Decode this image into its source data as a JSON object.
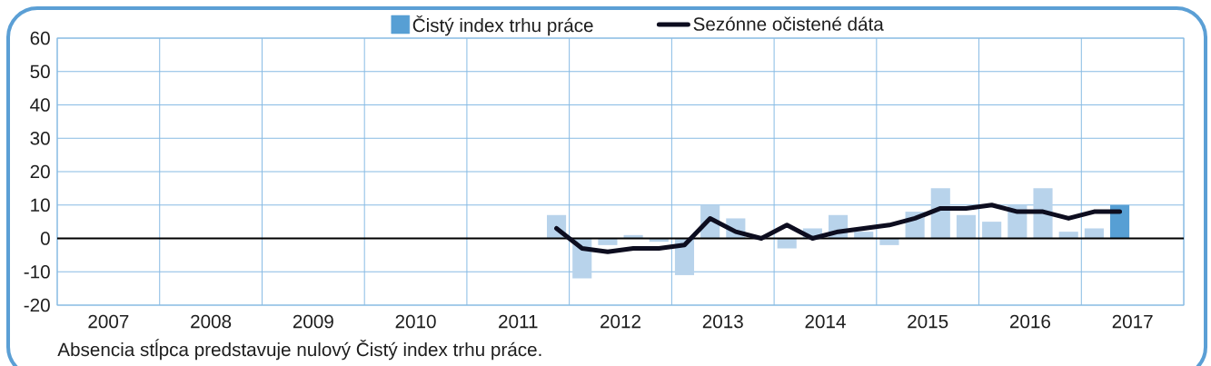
{
  "chart_data": {
    "type": "bar",
    "x": [
      2011.875,
      2012.125,
      2012.375,
      2012.625,
      2012.875,
      2013.125,
      2013.375,
      2013.625,
      2013.875,
      2014.125,
      2014.375,
      2014.625,
      2014.875,
      2015.125,
      2015.375,
      2015.625,
      2015.875,
      2016.125,
      2016.375,
      2016.625,
      2016.875,
      2017.125,
      2017.375
    ],
    "xlim": [
      2007,
      2018
    ],
    "xticks": [
      {
        "value": 2007,
        "label": null
      },
      {
        "value": 2007.5,
        "label": "2007"
      },
      {
        "value": 2008,
        "label": null
      },
      {
        "value": 2008.5,
        "label": "2008"
      },
      {
        "value": 2009,
        "label": null
      },
      {
        "value": 2009.5,
        "label": "2009"
      },
      {
        "value": 2010,
        "label": null
      },
      {
        "value": 2010.5,
        "label": "2010"
      },
      {
        "value": 2011,
        "label": null
      },
      {
        "value": 2011.5,
        "label": "2011"
      },
      {
        "value": 2012,
        "label": null
      },
      {
        "value": 2012.5,
        "label": "2012"
      },
      {
        "value": 2013,
        "label": null
      },
      {
        "value": 2013.5,
        "label": "2013"
      },
      {
        "value": 2014,
        "label": null
      },
      {
        "value": 2014.5,
        "label": "2014"
      },
      {
        "value": 2015,
        "label": null
      },
      {
        "value": 2015.5,
        "label": "2015"
      },
      {
        "value": 2016,
        "label": null
      },
      {
        "value": 2016.5,
        "label": "2016"
      },
      {
        "value": 2017,
        "label": null
      },
      {
        "value": 2017.5,
        "label": "2017"
      },
      {
        "value": 2018,
        "label": null
      }
    ],
    "ylim": [
      -20,
      60
    ],
    "yticks": [
      -20,
      -10,
      0,
      10,
      20,
      30,
      40,
      50,
      60
    ],
    "grid": true,
    "legend": "top",
    "series": [
      {
        "name": "Čistý index trhu práce",
        "color": "#579fd4",
        "colors": [
          "#b8d3eb",
          "#b8d3eb",
          "#b8d3eb",
          "#b8d3eb",
          "#b8d3eb",
          "#b8d3eb",
          "#b8d3eb",
          "#b8d3eb",
          "#b8d3eb",
          "#b8d3eb",
          "#b8d3eb",
          "#b8d3eb",
          "#b8d3eb",
          "#b8d3eb",
          "#b8d3eb",
          "#b8d3eb",
          "#b8d3eb",
          "#b8d3eb",
          "#b8d3eb",
          "#b8d3eb",
          "#b8d3eb",
          "#b8d3eb",
          "#579fd4"
        ],
        "values": [
          7,
          -12,
          -2,
          1,
          -1,
          -11,
          10,
          6,
          0,
          -3,
          3,
          7,
          2,
          -2,
          8,
          15,
          7,
          5,
          10,
          15,
          2,
          3,
          10
        ]
      },
      {
        "name": "Sezónne očistené dáta",
        "type": "line",
        "color": "#0d0d1f",
        "values": [
          3,
          -3,
          -4,
          -3,
          -3,
          -2,
          6,
          2,
          0,
          4,
          0,
          2,
          3,
          4,
          6,
          9,
          9,
          10,
          8,
          8,
          6,
          8,
          8
        ]
      }
    ],
    "ref_lines": [
      {
        "axis": "y",
        "value": 0,
        "color": "#000000"
      }
    ],
    "annotations": [
      "Absencia stĺpca predstavuje nulový Čistý index trhu práce."
    ]
  }
}
